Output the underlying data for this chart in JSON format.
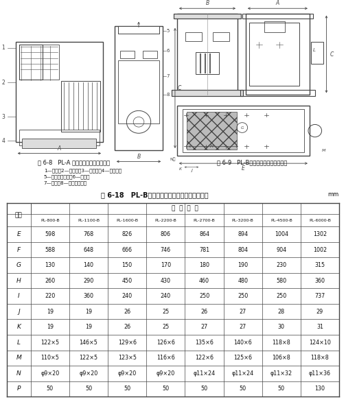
{
  "title": "表 6-18   PL-B型电动振打扁袋式除尘器外形尺寸",
  "unit": "mm",
  "fig8_caption": "图 6-8   PL-A 型电动振打扁袋式除尘器",
  "fig8_subcaption_line1": "1—壳体；2—检修门；3—进风口；4—出灰口；",
  "fig8_subcaption_line2": "5—洁净空气出口；6—风机；",
  "fig8_subcaption_line3": "7—扁袋；8—振打清灰电机",
  "fig9_caption": "图 6-9   PL-B型电动振打扁袋式除尘器",
  "header_row1_col0": "代号",
  "header_row1_col1": "型  号  规  格",
  "models": [
    "PL-800-B",
    "PL-1100-B",
    "PL-1600-B",
    "PL-2200-B",
    "PL-2700-B",
    "PL-3200-B",
    "PL-4500-B",
    "PL-6000-B"
  ],
  "rows": [
    [
      "E",
      "598",
      "768",
      "826",
      "806",
      "864",
      "894",
      "1004",
      "1302"
    ],
    [
      "F",
      "588",
      "648",
      "666",
      "746",
      "781",
      "804",
      "904",
      "1002"
    ],
    [
      "G",
      "130",
      "140",
      "150",
      "170",
      "180",
      "190",
      "230",
      "315"
    ],
    [
      "H",
      "260",
      "290",
      "450",
      "430",
      "460",
      "480",
      "580",
      "360"
    ],
    [
      "I",
      "220",
      "360",
      "240",
      "240",
      "250",
      "250",
      "250",
      "737"
    ],
    [
      "J",
      "19",
      "19",
      "26",
      "25",
      "26",
      "27",
      "28",
      "29"
    ],
    [
      "K",
      "19",
      "19",
      "26",
      "25",
      "27",
      "27",
      "30",
      "31"
    ],
    [
      "L",
      "122×5",
      "146×5",
      "129×6",
      "126×6",
      "135×6",
      "140×6",
      "118×8",
      "124×10"
    ],
    [
      "M",
      "110×5",
      "122×5",
      "123×5",
      "116×6",
      "122×6",
      "125×6",
      "106×8",
      "118×8"
    ],
    [
      "N",
      "φ9×20",
      "φ9×20",
      "φ9×20",
      "φ9×20",
      "φ11×24",
      "φ11×24",
      "φ11×32",
      "φ11×36"
    ],
    [
      "P",
      "50",
      "50",
      "50",
      "50",
      "50",
      "50",
      "50",
      "130"
    ]
  ],
  "line_color": "#444444",
  "text_color": "#111111",
  "gray_fill": "#cccccc",
  "light_gray": "#dddddd"
}
